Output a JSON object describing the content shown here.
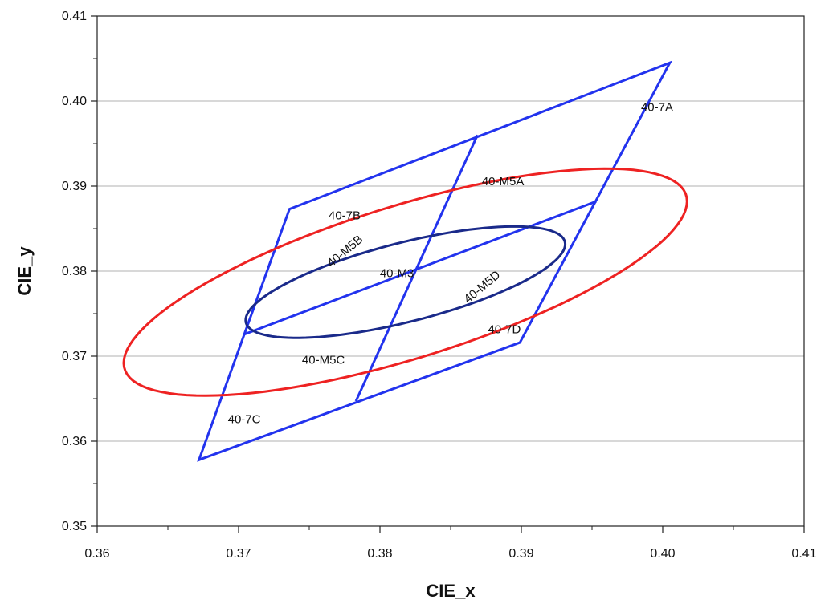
{
  "chart_data": {
    "type": "diagram",
    "xlabel": "CIE_x",
    "ylabel": "CIE_y",
    "xlim": [
      0.36,
      0.41
    ],
    "ylim": [
      0.35,
      0.41
    ],
    "grid": "horizontal",
    "x_ticks": [
      "0.36",
      "0.37",
      "0.38",
      "0.39",
      "0.40",
      "0.41"
    ],
    "y_ticks": [
      "0.35",
      "0.36",
      "0.37",
      "0.38",
      "0.39",
      "0.40",
      "0.41"
    ],
    "colors": {
      "quadrangle": "#2233ee",
      "m3_ellipse": "#1a2a8a",
      "m5_ellipse": "#ee2222",
      "grid": "#b0b0b0"
    },
    "quadrangle": {
      "vertices": [
        [
          0.4005,
          0.4045
        ],
        [
          0.3672,
          0.3578
        ],
        [
          0.3899,
          0.3716
        ],
        [
          0.3736,
          0.3873
        ]
      ],
      "order_note": "",
      "outline": [
        [
          0.4005,
          0.4045
        ],
        [
          0.3736,
          0.3873
        ],
        [
          0.3672,
          0.3578
        ],
        [
          0.3899,
          0.3716
        ]
      ],
      "dividers": [
        [
          [
            0.3869,
            0.396
          ],
          [
            0.3783,
            0.3647
          ]
        ],
        [
          [
            0.3703,
            0.3725
          ],
          [
            0.3953,
            0.3882
          ]
        ]
      ]
    },
    "ellipses": [
      {
        "name": "40-M3",
        "center": [
          0.3818,
          0.3787
        ],
        "semi_major": 0.0123,
        "semi_minor": 0.0044,
        "angle_deg": 25
      },
      {
        "name": "40-M5",
        "center": [
          0.3818,
          0.3787
        ],
        "semi_major": 0.0225,
        "semi_minor": 0.0083,
        "angle_deg": 30
      }
    ],
    "region_labels": [
      {
        "text": "40-7A",
        "x": 0.3996,
        "y": 0.3988,
        "rotate": 0
      },
      {
        "text": "40-7B",
        "x": 0.3775,
        "y": 0.3861,
        "rotate": 0
      },
      {
        "text": "40-7C",
        "x": 0.3704,
        "y": 0.3621,
        "rotate": 0
      },
      {
        "text": "40-7D",
        "x": 0.3888,
        "y": 0.3727,
        "rotate": 0
      },
      {
        "text": "40-M5A",
        "x": 0.3887,
        "y": 0.3901,
        "rotate": 0
      },
      {
        "text": "40-M5B",
        "x": 0.3777,
        "y": 0.382,
        "rotate": -40
      },
      {
        "text": "40-M5C",
        "x": 0.376,
        "y": 0.3691,
        "rotate": 0
      },
      {
        "text": "40-M5D",
        "x": 0.3874,
        "y": 0.3778,
        "rotate": -40
      },
      {
        "text": "40-M3",
        "x": 0.3812,
        "y": 0.3793,
        "rotate": 0
      }
    ]
  }
}
